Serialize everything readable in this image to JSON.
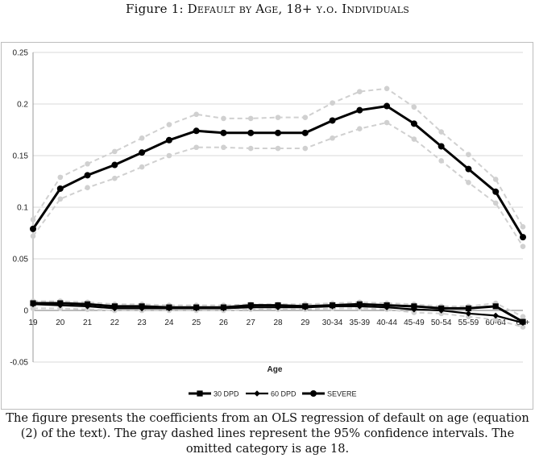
{
  "figure_title": "Figure 1: Default by Age, 18+ y.o. Individuals",
  "caption": "The figure presents the coefficients from an OLS regression of default on age (equation (2) of the text). The gray dashed lines represent the 95% confidence intervals. The omitted category is age 18.",
  "chart_data": {
    "type": "line",
    "title": "",
    "xlabel": "Age",
    "ylabel": "",
    "ylim": [
      -0.05,
      0.25
    ],
    "yticks": [
      -0.05,
      0,
      0.05,
      0.1,
      0.15,
      0.2,
      0.25
    ],
    "ytick_labels": [
      "-0.05",
      "0",
      "0.05",
      "0.1",
      "0.15",
      "0.2",
      "0.25"
    ],
    "categories": [
      "19",
      "20",
      "21",
      "22",
      "23",
      "24",
      "25",
      "26",
      "27",
      "28",
      "29",
      "30-34",
      "35-39",
      "40-44",
      "45-49",
      "50-54",
      "55-59",
      "60-64",
      "65+"
    ],
    "series": [
      {
        "name": "30 DPD",
        "marker": "square",
        "color": "#000000",
        "values": [
          0.007,
          0.007,
          0.006,
          0.004,
          0.004,
          0.003,
          0.003,
          0.003,
          0.005,
          0.005,
          0.004,
          0.005,
          0.006,
          0.005,
          0.004,
          0.002,
          0.002,
          0.004,
          -0.011
        ]
      },
      {
        "name": "60 DPD",
        "marker": "diamond",
        "color": "#000000",
        "values": [
          0.006,
          0.005,
          0.004,
          0.002,
          0.002,
          0.002,
          0.002,
          0.002,
          0.003,
          0.003,
          0.003,
          0.004,
          0.004,
          0.003,
          0.001,
          0.0,
          -0.003,
          -0.005,
          -0.012
        ]
      },
      {
        "name": "SEVERE",
        "marker": "circle",
        "color": "#000000",
        "values": [
          0.079,
          0.118,
          0.131,
          0.141,
          0.153,
          0.165,
          0.174,
          0.172,
          0.172,
          0.172,
          0.172,
          0.184,
          0.194,
          0.198,
          0.181,
          0.159,
          0.137,
          0.115,
          0.071
        ]
      }
    ],
    "confidence_bands": {
      "color": "#d0d0d0",
      "severe_upper": [
        0.088,
        0.129,
        0.142,
        0.154,
        0.167,
        0.18,
        0.19,
        0.186,
        0.186,
        0.187,
        0.187,
        0.201,
        0.212,
        0.215,
        0.197,
        0.173,
        0.151,
        0.127,
        0.081
      ],
      "severe_lower": [
        0.072,
        0.108,
        0.119,
        0.128,
        0.139,
        0.15,
        0.158,
        0.158,
        0.157,
        0.157,
        0.157,
        0.167,
        0.176,
        0.182,
        0.166,
        0.145,
        0.124,
        0.104,
        0.062
      ],
      "small_upper": [
        0.009,
        0.009,
        0.008,
        0.006,
        0.006,
        0.005,
        0.005,
        0.005,
        0.006,
        0.006,
        0.006,
        0.007,
        0.008,
        0.007,
        0.006,
        0.004,
        0.004,
        0.007,
        -0.006
      ],
      "small_lower": [
        0.002,
        0.002,
        0.001,
        0.0,
        0.0,
        0.0,
        0.0,
        0.0,
        0.001,
        0.001,
        0.001,
        0.002,
        0.002,
        0.001,
        -0.002,
        -0.003,
        -0.006,
        -0.009,
        -0.016
      ]
    },
    "grid": true,
    "legend": "bottom"
  }
}
